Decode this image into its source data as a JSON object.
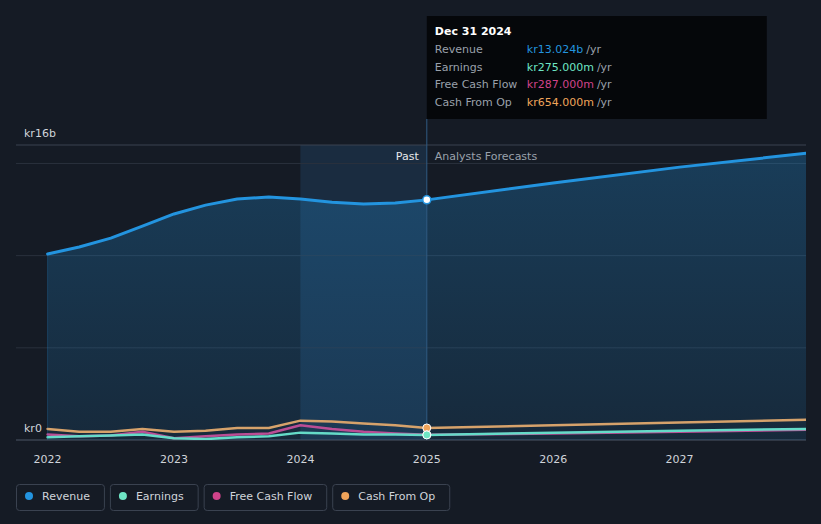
{
  "chart_data": {
    "type": "line",
    "x": [
      2022,
      2022.25,
      2022.5,
      2022.75,
      2023,
      2023.25,
      2023.5,
      2023.75,
      2024,
      2024.25,
      2024.5,
      2024.75,
      2025,
      2026,
      2027,
      2028
    ],
    "series": [
      {
        "name": "Revenue",
        "color": "#2394df",
        "type": "area",
        "values": [
          10.09,
          10.47,
          10.95,
          11.6,
          12.26,
          12.74,
          13.07,
          13.18,
          13.07,
          12.9,
          12.8,
          12.85,
          13.024,
          13.94,
          14.8,
          15.55
        ]
      },
      {
        "name": "Earnings",
        "color": "#6ee5c5",
        "values": [
          0.15,
          0.2,
          0.25,
          0.3,
          0.1,
          0.05,
          0.15,
          0.2,
          0.4,
          0.35,
          0.3,
          0.3,
          0.275,
          0.4,
          0.5,
          0.6
        ]
      },
      {
        "name": "Free Cash Flow",
        "color": "#d0438a",
        "values": [
          0.3,
          0.2,
          0.25,
          0.45,
          0.1,
          0.2,
          0.3,
          0.35,
          0.8,
          0.6,
          0.45,
          0.35,
          0.287,
          0.35,
          0.45,
          0.55
        ]
      },
      {
        "name": "Cash From Op",
        "color": "#f0a45a",
        "values": [
          0.6,
          0.45,
          0.45,
          0.6,
          0.45,
          0.5,
          0.65,
          0.65,
          1.05,
          1.0,
          0.9,
          0.8,
          0.654,
          0.8,
          0.95,
          1.1
        ]
      }
    ],
    "xlim": [
      2021.75,
      2028
    ],
    "xticks": [
      2022,
      2023,
      2024,
      2025,
      2026,
      2027
    ],
    "ylim": [
      0,
      16
    ],
    "yticks": [
      {
        "value": 0,
        "label": "kr0"
      },
      {
        "value": 5,
        "label": null
      },
      {
        "value": 10,
        "label": null
      },
      {
        "value": 15,
        "label": null
      },
      {
        "value": 16,
        "label": "kr16b"
      }
    ],
    "grid": true,
    "legend": "bottom-left",
    "highlight": {
      "from": 2024,
      "to": 2025
    },
    "annotations": [
      {
        "text": "Past"
      },
      {
        "text": "Analysts Forecasts"
      }
    ],
    "tooltip": {
      "x": 2025,
      "title": "Dec 31 2024",
      "rows": [
        {
          "label": "Revenue",
          "value": "kr13.024b",
          "unit": "/yr"
        },
        {
          "label": "Earnings",
          "value": "kr275.000m",
          "unit": "/yr"
        },
        {
          "label": "Free Cash Flow",
          "value": "kr287.000m",
          "unit": "/yr"
        },
        {
          "label": "Cash From Op",
          "value": "kr654.000m",
          "unit": "/yr"
        }
      ]
    }
  }
}
